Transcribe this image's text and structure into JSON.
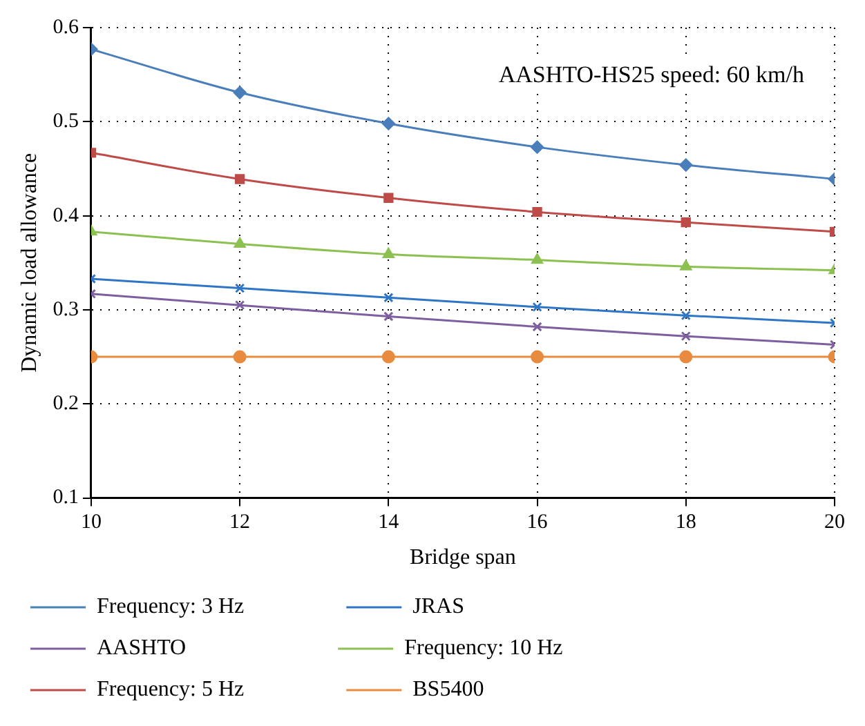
{
  "chart_data": {
    "type": "line",
    "xlabel": "Bridge span",
    "ylabel": "Dynamic load allowance",
    "annotations": [
      "AASHTO-HS25 speed: 60 km/h"
    ],
    "x": [
      10,
      12,
      14,
      16,
      18,
      20
    ],
    "xlim": [
      10,
      20
    ],
    "xticks": [
      10,
      12,
      14,
      16,
      18,
      20
    ],
    "ylim": [
      0.1,
      0.6
    ],
    "yticks": [
      0.1,
      0.2,
      0.3,
      0.4,
      0.5,
      0.6
    ],
    "grid": true,
    "legend": "bottom",
    "series": [
      {
        "name": "Frequency: 3 Hz",
        "color": "#4a7ebb",
        "marker": "diamond",
        "values": [
          0.577,
          0.531,
          0.498,
          0.473,
          0.454,
          0.439
        ]
      },
      {
        "name": "JRAS",
        "color": "#2e75c6",
        "marker": "cross",
        "values": [
          0.333,
          0.323,
          0.313,
          0.303,
          0.294,
          0.286
        ]
      },
      {
        "name": "AASHTO",
        "color": "#7d5fa0",
        "marker": "cross",
        "values": [
          0.317,
          0.305,
          0.293,
          0.282,
          0.272,
          0.263
        ]
      },
      {
        "name": "Frequency: 10 Hz",
        "color": "#8cc152",
        "marker": "triangle",
        "values": [
          0.383,
          0.37,
          0.359,
          0.353,
          0.346,
          0.342
        ]
      },
      {
        "name": "Frequency: 5 Hz",
        "color": "#be4b48",
        "marker": "square",
        "values": [
          0.467,
          0.439,
          0.419,
          0.404,
          0.393,
          0.383
        ]
      },
      {
        "name": "BS5400",
        "color": "#e98b3e",
        "marker": "circle",
        "values": [
          0.25,
          0.25,
          0.25,
          0.25,
          0.25,
          0.25
        ]
      }
    ]
  }
}
